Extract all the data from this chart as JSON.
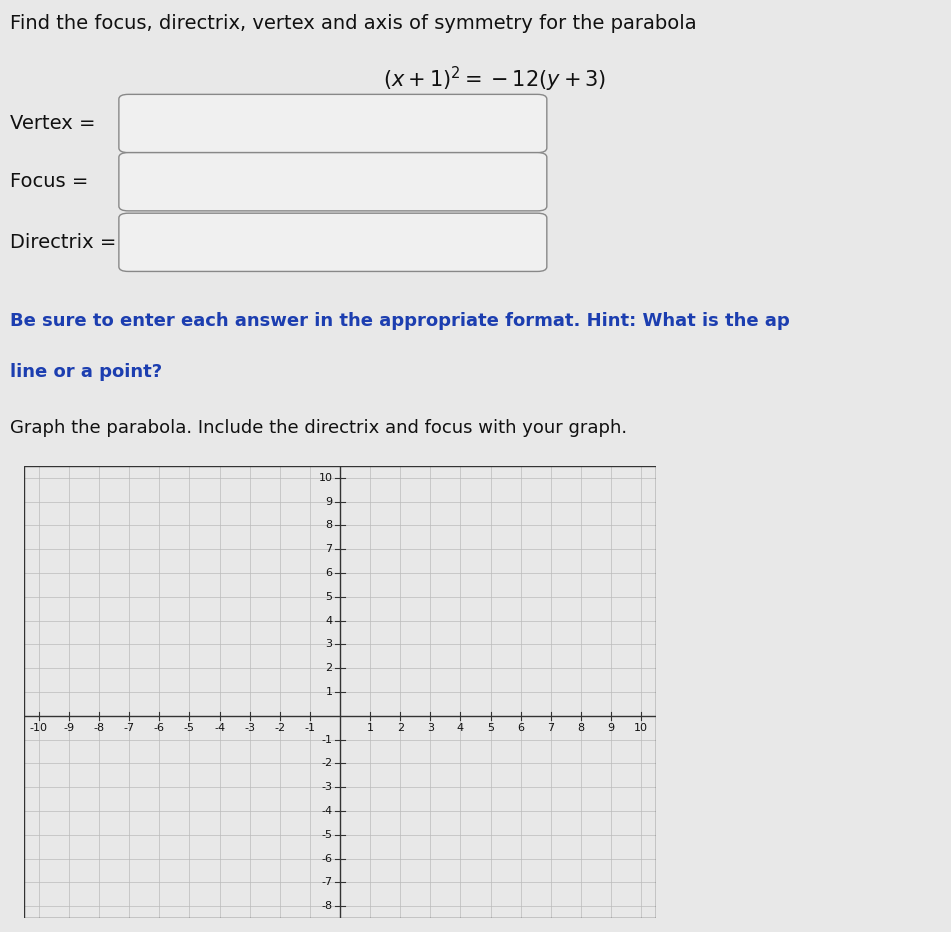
{
  "background_color": "#e8e8e8",
  "title_line1": "Find the focus, directrix, vertex and axis of symmetry for the parabola",
  "title_line2": "$(x + 1)^{2} = -12(y + 3)$",
  "title_fontsize": 14,
  "label_fontsize": 14,
  "labels": [
    "Vertex =",
    "Focus =",
    "Directrix ="
  ],
  "hint_text_line1": "Be sure to enter each answer in the appropriate format. Hint: What is the ap",
  "hint_text_line2": "line or a point?",
  "hint_fontsize": 13,
  "graph_text": "Graph the parabola. Include the directrix and focus with your graph.",
  "graph_fontsize": 13,
  "box_color": "#f0f0f0",
  "box_edge_color": "#888888",
  "hint_color": "#1c3eb0",
  "text_color": "#111111",
  "grid_color": "#bbbbbb",
  "axis_color": "#333333",
  "tick_fontsize": 8,
  "xmin": -10,
  "xmax": 10,
  "ymin": -8,
  "ymax": 10
}
